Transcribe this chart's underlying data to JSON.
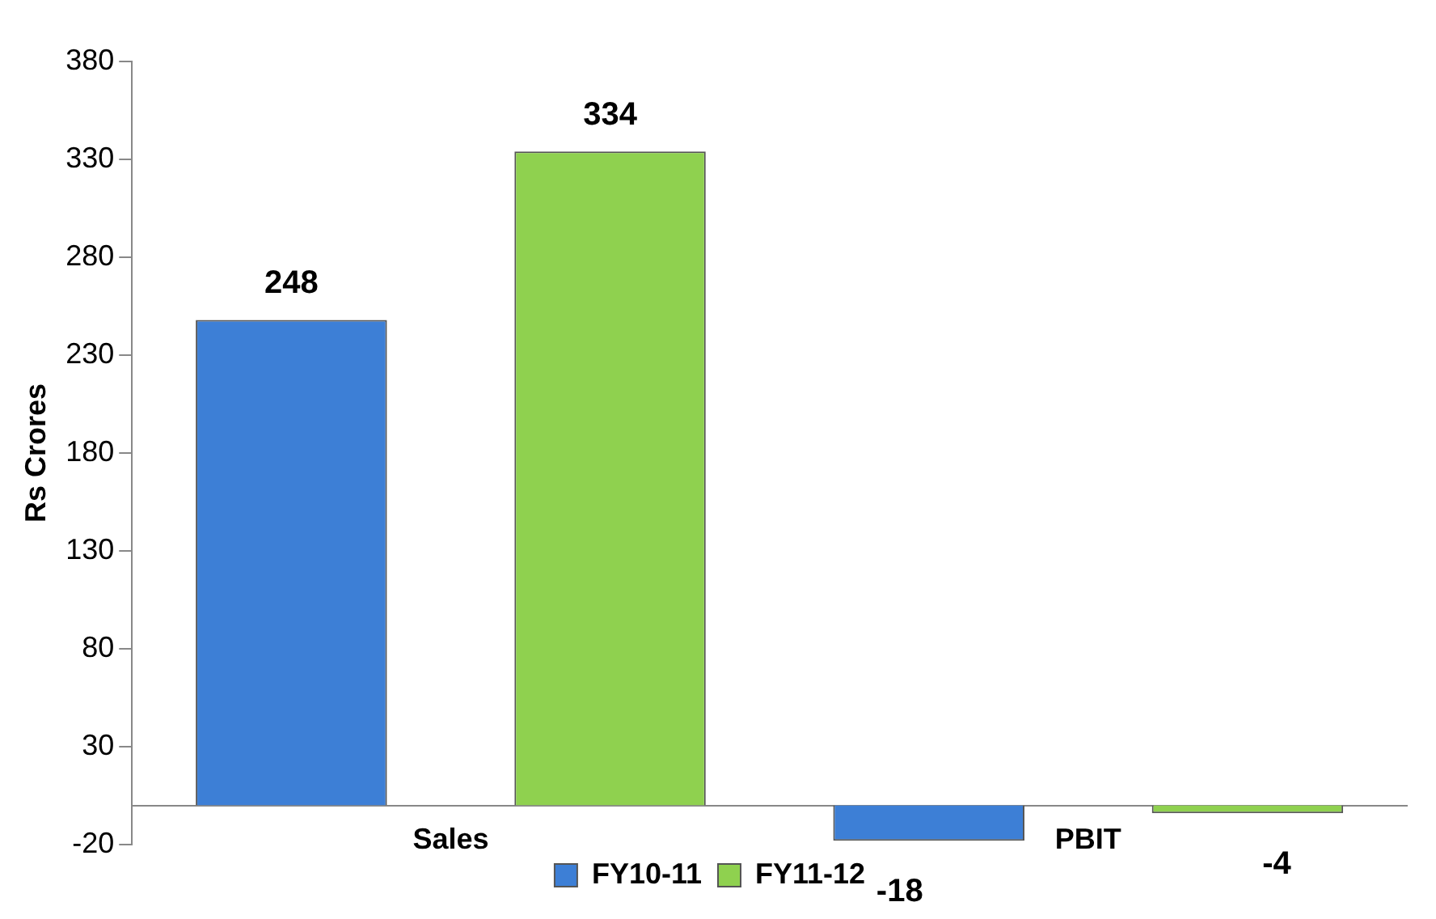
{
  "chart_data": {
    "type": "bar",
    "ylabel": "Rs Crores",
    "categories": [
      "Sales",
      "PBIT"
    ],
    "series": [
      {
        "name": "FY10-11",
        "color": "#3d7fd6",
        "values": [
          248,
          -18
        ]
      },
      {
        "name": "FY11-12",
        "color": "#8fd14f",
        "values": [
          334,
          -4
        ]
      }
    ],
    "ylim": [
      -20,
      380
    ],
    "yticks": [
      -20,
      30,
      80,
      130,
      180,
      230,
      280,
      330,
      380
    ],
    "grid": false,
    "legend": "bottom",
    "data_labels": true
  }
}
